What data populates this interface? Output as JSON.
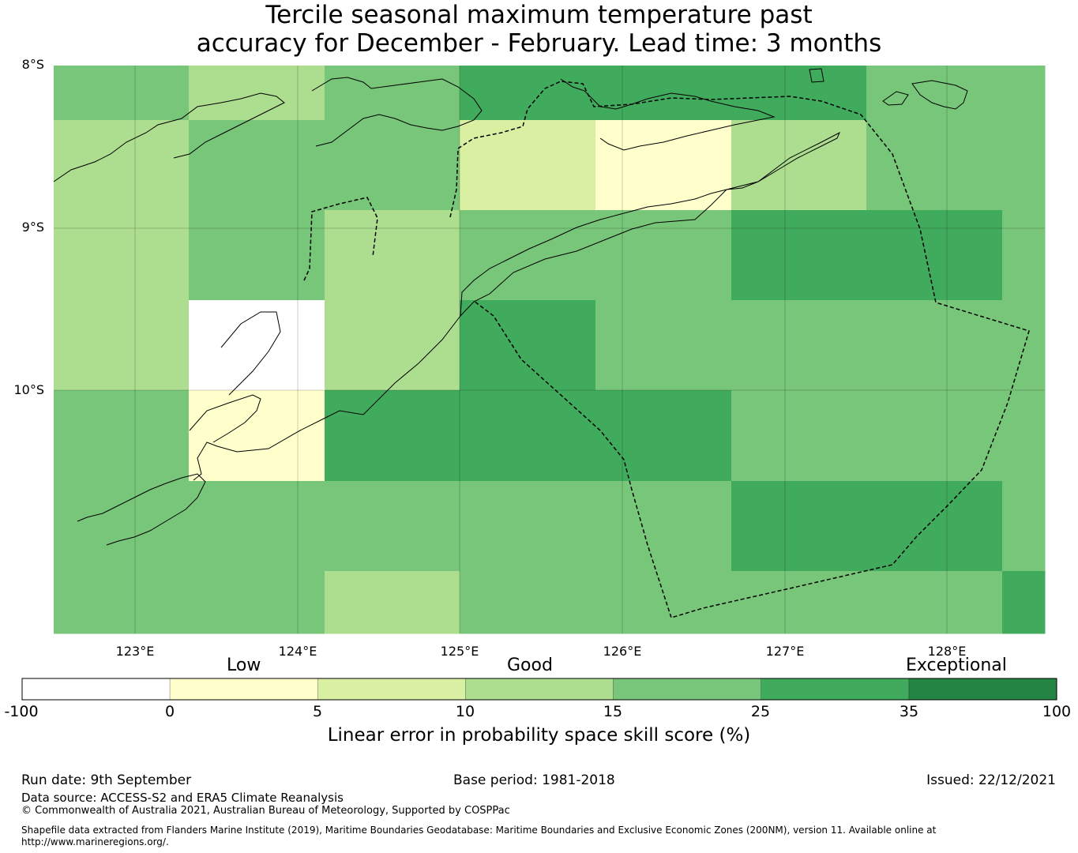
{
  "title": {
    "line1": "Tercile seasonal maximum temperature past",
    "line2": "accuracy for December - February. Lead time: 3 months"
  },
  "map": {
    "lat_labels": [
      "8°S",
      "9°S",
      "10°S"
    ],
    "lon_labels": [
      "123°E",
      "124°E",
      "125°E",
      "126°E",
      "127°E",
      "128°E"
    ],
    "grid_cell_categories": [
      [
        4,
        3,
        4,
        5,
        5,
        5,
        4,
        4
      ],
      [
        3,
        4,
        4,
        2,
        1,
        3,
        4,
        4
      ],
      [
        3,
        4,
        3,
        4,
        4,
        5,
        5,
        4
      ],
      [
        3,
        0,
        3,
        5,
        4,
        4,
        4,
        4
      ],
      [
        4,
        1,
        5,
        5,
        5,
        4,
        4,
        4
      ],
      [
        4,
        4,
        4,
        4,
        4,
        5,
        5,
        4
      ],
      [
        4,
        4,
        3,
        4,
        4,
        4,
        4,
        5
      ]
    ]
  },
  "legend": {
    "categories": [
      "Low",
      "Good",
      "Exceptional"
    ],
    "ticks": [
      "-100",
      "0",
      "5",
      "10",
      "15",
      "25",
      "35",
      "100"
    ],
    "colors": [
      "#ffffff",
      "#ffffcc",
      "#d9f0a3",
      "#addd8e",
      "#78c679",
      "#41ab5d",
      "#238443"
    ],
    "label": "Linear error in probability space skill score (%)"
  },
  "footer": {
    "run_date": "Run date: 9th September",
    "base_period": "Base period: 1981-2018",
    "issued": "Issued: 22/12/2021",
    "data_source": "Data source: ACCESS-S2 and ERA5 Climate Reanalysis",
    "copyright": "© Commonwealth of Australia 2021, Australian Bureau of Meteorology, Supported by COSPPac",
    "shapefile_line1": "Shapefile data extracted from Flanders Marine Institute (2019), Maritime Boundaries Geodatabase: Maritime Boundaries and Exclusive Economic Zones (200NM), version 11. Available online at",
    "shapefile_line2": "http://www.marineregions.org/."
  }
}
